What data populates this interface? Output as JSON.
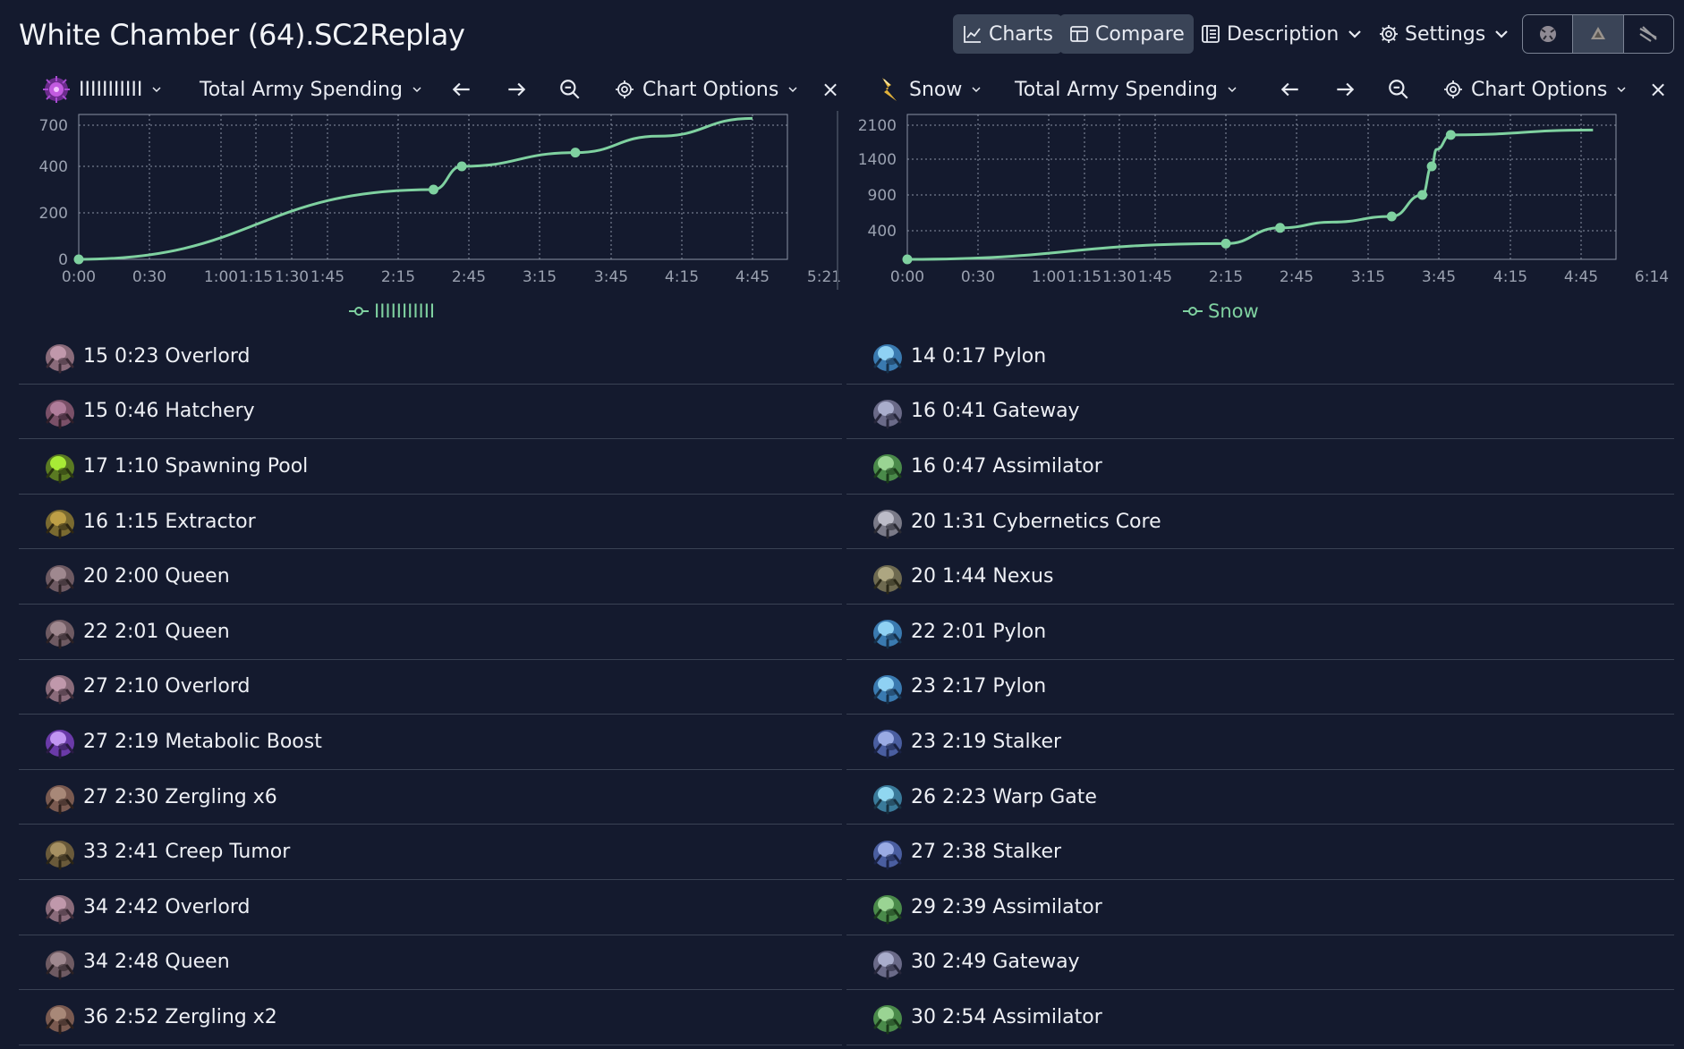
{
  "header": {
    "title": "White Chamber (64).SC2Replay",
    "charts_label": "Charts",
    "compare_label": "Compare",
    "description_label": "Description",
    "settings_label": "Settings",
    "race_buttons": [
      "zerg-icon",
      "protoss-icon",
      "terran-icon"
    ]
  },
  "panels": [
    {
      "player_name": "IIIIIIIIIII",
      "race": "zerg",
      "metric_label": "Total Army Spending",
      "chart_options_label": "Chart Options",
      "close_label": "×",
      "legend_label": "IIIIIIIIIII",
      "color": "#7fd1a0"
    },
    {
      "player_name": "Snow",
      "race": "protoss",
      "metric_label": "Total Army Spending",
      "chart_options_label": "Chart Options",
      "close_label": "×",
      "legend_label": "Snow",
      "color": "#7fd1a0"
    }
  ],
  "chart_data": [
    {
      "type": "line",
      "series": [
        {
          "name": "IIIIIIIIIII",
          "x": [
            0,
            150,
            162,
            210,
            245,
            285
          ],
          "y": [
            0,
            300,
            400,
            500,
            620,
            750
          ]
        }
      ],
      "markers_x": [
        0,
        150,
        162,
        210
      ],
      "x_ticks": [
        "0:00",
        "0:30",
        "1:00",
        "1:15",
        "1:30",
        "1:45",
        "2:15",
        "2:45",
        "3:15",
        "3:45",
        "4:15",
        "4:45",
        "5:21"
      ],
      "y_ticks": [
        "700",
        "400",
        "200",
        "0"
      ],
      "grid": true
    },
    {
      "type": "line",
      "series": [
        {
          "name": "Snow",
          "x": [
            0,
            135,
            158,
            180,
            205,
            218,
            222,
            224,
            230,
            300
          ],
          "y": [
            0,
            220,
            440,
            520,
            600,
            900,
            1300,
            1600,
            1900,
            2000
          ]
        }
      ],
      "markers_x": [
        0,
        135,
        158,
        205,
        218,
        222,
        230
      ],
      "x_ticks": [
        "0:00",
        "0:30",
        "1:00",
        "1:15",
        "1:30",
        "1:45",
        "2:15",
        "2:45",
        "3:15",
        "3:45",
        "4:15",
        "4:45",
        "6:14"
      ],
      "y_ticks": [
        "2100",
        "1400",
        "900",
        "400"
      ],
      "grid": true
    }
  ],
  "build_orders": [
    [
      {
        "text": "15 0:23 Overlord",
        "icon": "overlord-icon"
      },
      {
        "text": "15 0:46 Hatchery",
        "icon": "hatchery-icon"
      },
      {
        "text": "17 1:10 Spawning Pool",
        "icon": "spawning-pool-icon"
      },
      {
        "text": "16 1:15 Extractor",
        "icon": "extractor-icon"
      },
      {
        "text": "20 2:00 Queen",
        "icon": "queen-icon"
      },
      {
        "text": "22 2:01 Queen",
        "icon": "queen-icon"
      },
      {
        "text": "27 2:10 Overlord",
        "icon": "overlord-icon"
      },
      {
        "text": "27 2:19 Metabolic Boost",
        "icon": "metabolic-boost-icon"
      },
      {
        "text": "27 2:30 Zergling x6",
        "icon": "zergling-icon"
      },
      {
        "text": "33 2:41 Creep Tumor",
        "icon": "creep-tumor-icon"
      },
      {
        "text": "34 2:42 Overlord",
        "icon": "overlord-icon"
      },
      {
        "text": "34 2:48 Queen",
        "icon": "queen-icon"
      },
      {
        "text": "36 2:52 Zergling x2",
        "icon": "zergling-icon"
      }
    ],
    [
      {
        "text": "14 0:17 Pylon",
        "icon": "pylon-icon"
      },
      {
        "text": "16 0:41 Gateway",
        "icon": "gateway-icon"
      },
      {
        "text": "16 0:47 Assimilator",
        "icon": "assimilator-icon"
      },
      {
        "text": "20 1:31 Cybernetics Core",
        "icon": "cybernetics-core-icon"
      },
      {
        "text": "20 1:44 Nexus",
        "icon": "nexus-icon"
      },
      {
        "text": "22 2:01 Pylon",
        "icon": "pylon-icon"
      },
      {
        "text": "23 2:17 Pylon",
        "icon": "pylon-icon"
      },
      {
        "text": "23 2:19 Stalker",
        "icon": "stalker-icon"
      },
      {
        "text": "26 2:23 Warp Gate",
        "icon": "warp-gate-icon"
      },
      {
        "text": "27 2:38 Stalker",
        "icon": "stalker-icon"
      },
      {
        "text": "29 2:39 Assimilator",
        "icon": "assimilator-icon"
      },
      {
        "text": "30 2:49 Gateway",
        "icon": "gateway-icon"
      },
      {
        "text": "30 2:54 Assimilator",
        "icon": "assimilator-icon"
      }
    ]
  ]
}
